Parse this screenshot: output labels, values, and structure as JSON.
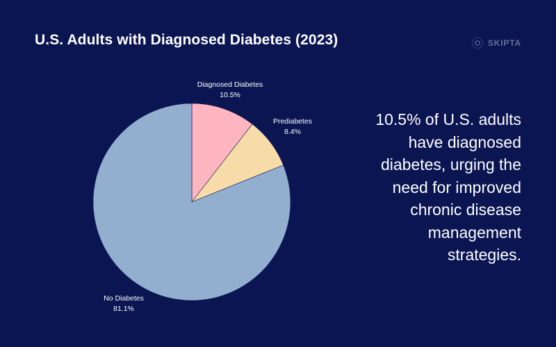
{
  "title": "U.S. Adults with Diagnosed Diabetes (2023)",
  "brand": {
    "name": "SKIPTA",
    "icon": "skipta-logo-icon"
  },
  "callout": "10.5% of U.S. adults have diagnosed diabetes, urging the need for improved chronic disease management strategies.",
  "chart_data": {
    "type": "pie",
    "title": "U.S. Adults with Diagnosed Diabetes (2023)",
    "categories": [
      "Diagnosed Diabetes",
      "Prediabetes",
      "No Diabetes"
    ],
    "values": [
      10.5,
      8.4,
      81.1
    ],
    "value_labels": [
      "10.5%",
      "8.4%",
      "81.1%"
    ],
    "colors": [
      "#ffb6c1",
      "#f7dcaa",
      "#93afd0"
    ],
    "start": "top, clockwise",
    "legend": "none"
  }
}
